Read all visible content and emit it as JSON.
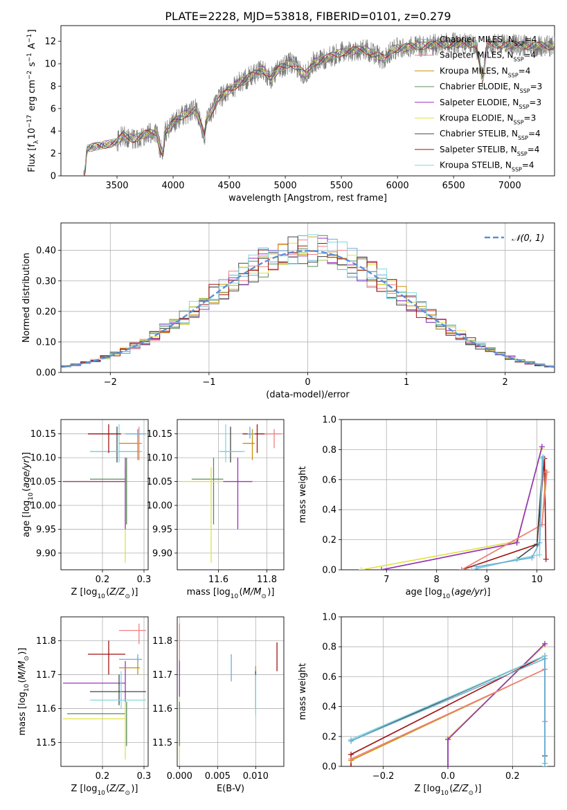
{
  "title": "PLATE=2228, MJD=53818, FIBERID=0101, z=0.279",
  "legend": [
    {
      "label": "Chabrier MILES, N",
      "sub": "SSP",
      "suffix": "=4",
      "color": "#6aaed6"
    },
    {
      "label": "Salpeter MILES, N",
      "sub": "SSP",
      "suffix": "=4",
      "color": "#f08080"
    },
    {
      "label": "Kroupa MILES, N",
      "sub": "SSP",
      "suffix": "=4",
      "color": "#c8900a"
    },
    {
      "label": "Chabrier ELODIE, N",
      "sub": "SSP",
      "suffix": "=3",
      "color": "#5a8a5a"
    },
    {
      "label": "Salpeter ELODIE, N",
      "sub": "SSP",
      "suffix": "=3",
      "color": "#9b30c0"
    },
    {
      "label": "Kroupa ELODIE, N",
      "sub": "SSP",
      "suffix": "=3",
      "color": "#e0e040"
    },
    {
      "label": "Chabrier STELIB, N",
      "sub": "SSP",
      "suffix": "=4",
      "color": "#444444"
    },
    {
      "label": "Salpeter STELIB, N",
      "sub": "SSP",
      "suffix": "=4",
      "color": "#a01010"
    },
    {
      "label": "Kroupa STELIB, N",
      "sub": "SSP",
      "suffix": "=4",
      "color": "#80d8e0"
    }
  ],
  "normal_legend": "𝒩(0, 1)",
  "chart_data": [
    {
      "type": "line",
      "title": "PLATE=2228, MJD=53818, FIBERID=0101, z=0.279",
      "xlabel": "wavelength [Angstrom, rest frame]",
      "ylabel": "Flux [f_λ 10^-17 erg cm^-2 s^-1 A^-1]",
      "xlim": [
        3000,
        7400
      ],
      "ylim": [
        0,
        13.4
      ],
      "xticks": [
        3500,
        4000,
        4500,
        5000,
        5500,
        6000,
        6500,
        7000
      ],
      "yticks": [
        0,
        2,
        4,
        6,
        8,
        10,
        12
      ],
      "spectrum_knots": [
        [
          3200,
          0
        ],
        [
          3215,
          0.3
        ],
        [
          3230,
          2.4
        ],
        [
          3300,
          2.6
        ],
        [
          3400,
          2.8
        ],
        [
          3500,
          3.0
        ],
        [
          3550,
          3.6
        ],
        [
          3650,
          3.3
        ],
        [
          3750,
          3.7
        ],
        [
          3850,
          3.9
        ],
        [
          3880,
          2.6
        ],
        [
          3910,
          2.0
        ],
        [
          3930,
          3.9
        ],
        [
          4000,
          4.7
        ],
        [
          4100,
          5.5
        ],
        [
          4200,
          5.9
        ],
        [
          4280,
          3.6
        ],
        [
          4300,
          5.0
        ],
        [
          4400,
          6.8
        ],
        [
          4500,
          7.6
        ],
        [
          4600,
          8.4
        ],
        [
          4700,
          8.9
        ],
        [
          4800,
          9.5
        ],
        [
          4870,
          8.7
        ],
        [
          4950,
          9.6
        ],
        [
          5050,
          10.1
        ],
        [
          5180,
          9.0
        ],
        [
          5250,
          10.1
        ],
        [
          5400,
          10.6
        ],
        [
          5500,
          11.0
        ],
        [
          5700,
          11.3
        ],
        [
          5890,
          10.4
        ],
        [
          5950,
          11.3
        ],
        [
          6200,
          11.6
        ],
        [
          6500,
          11.8
        ],
        [
          6700,
          11.8
        ],
        [
          6760,
          8.5
        ],
        [
          6800,
          11.8
        ],
        [
          7000,
          11.7
        ],
        [
          7200,
          11.6
        ],
        [
          7400,
          11.6
        ]
      ]
    },
    {
      "type": "line",
      "xlabel": "(data-model)/error",
      "ylabel": "Normed distribution",
      "xlim": [
        -2.5,
        2.5
      ],
      "ylim": [
        0,
        0.49
      ],
      "xticks": [
        -2,
        -1,
        0,
        1,
        2
      ],
      "yticks": [
        0.0,
        0.1,
        0.2,
        0.3,
        0.4
      ],
      "series_note": "histograms of normalized residuals for the 9 fits, overlaid with a standard normal curve",
      "normal": {
        "mu": 0,
        "sigma": 1,
        "color": "#5b8fd9"
      }
    },
    {
      "type": "scatter",
      "xlabel": "Z [log10(Z/Z⊙)]",
      "ylabel": "age  [log10(age/yr)]",
      "xlim": [
        0.1,
        0.31
      ],
      "ylim": [
        9.865,
        10.18
      ],
      "xticks": [
        0.2,
        0.3
      ],
      "yticks": [
        9.9,
        9.95,
        10.0,
        10.05,
        10.1,
        10.15
      ],
      "points": [
        {
          "x": 0.258,
          "y": 10.055,
          "xerr": [
            0.17,
            0.255
          ],
          "yerr": [
            9.96,
            10.1
          ],
          "color": "#5a8a5a"
        },
        {
          "x": 0.255,
          "y": 10.05,
          "xerr": [
            0.105,
            0.255
          ],
          "yerr": [
            9.88,
            10.08
          ],
          "color": "#e0e040"
        },
        {
          "x": 0.255,
          "y": 10.05,
          "xerr": [
            0.105,
            0.255
          ],
          "yerr": [
            9.95,
            10.1
          ],
          "color": "#9b30c0"
        },
        {
          "x": 0.235,
          "y": 10.113,
          "xerr": [
            0.17,
            0.295
          ],
          "yerr": [
            10.09,
            10.165
          ],
          "color": "#444444"
        },
        {
          "x": 0.24,
          "y": 10.113,
          "xerr": [
            0.17,
            0.295
          ],
          "yerr": [
            10.09,
            10.17
          ],
          "color": "#80d8e0"
        },
        {
          "x": 0.215,
          "y": 10.15,
          "xerr": [
            0.165,
            0.245
          ],
          "yerr": [
            10.11,
            10.17
          ],
          "color": "#a01010"
        },
        {
          "x": 0.285,
          "y": 10.13,
          "xerr": [
            0.24,
            0.29
          ],
          "yerr": [
            10.095,
            10.16
          ],
          "color": "#c8900a"
        },
        {
          "x": 0.288,
          "y": 10.13,
          "xerr": [
            0.285,
            0.295
          ],
          "yerr": [
            10.095,
            10.165
          ],
          "color": "#f08080"
        },
        {
          "x": 0.285,
          "y": 10.15,
          "xerr": [
            0.255,
            0.305
          ],
          "yerr": [
            10.14,
            10.16
          ],
          "color": "#6aaed6"
        }
      ]
    },
    {
      "type": "scatter",
      "xlabel": "mass [log10(M/M⊙)]",
      "ylabel": "",
      "xlim": [
        11.43,
        11.87
      ],
      "ylim": [
        9.865,
        10.18
      ],
      "xticks": [
        11.6,
        11.8
      ],
      "yticks": [
        9.9,
        9.95,
        10.0,
        10.05,
        10.1,
        10.15
      ],
      "points": [
        {
          "x": 11.58,
          "y": 10.055,
          "xerr": [
            11.49,
            11.62
          ],
          "yerr": [
            9.96,
            10.1
          ],
          "color": "#5a8a5a"
        },
        {
          "x": 11.57,
          "y": 10.05,
          "xerr": [
            11.45,
            11.62
          ],
          "yerr": [
            9.88,
            10.08
          ],
          "color": "#e0e040"
        },
        {
          "x": 11.68,
          "y": 10.05,
          "xerr": [
            11.62,
            11.74
          ],
          "yerr": [
            9.95,
            10.1
          ],
          "color": "#9b30c0"
        },
        {
          "x": 11.65,
          "y": 10.113,
          "xerr": [
            11.61,
            11.7
          ],
          "yerr": [
            10.09,
            10.165
          ],
          "color": "#444444"
        },
        {
          "x": 11.63,
          "y": 10.113,
          "xerr": [
            11.6,
            11.71
          ],
          "yerr": [
            10.09,
            10.17
          ],
          "color": "#80d8e0"
        },
        {
          "x": 11.76,
          "y": 10.15,
          "xerr": [
            11.7,
            11.8
          ],
          "yerr": [
            10.11,
            10.17
          ],
          "color": "#a01010"
        },
        {
          "x": 11.74,
          "y": 10.13,
          "xerr": [
            11.7,
            11.75
          ],
          "yerr": [
            10.095,
            10.16
          ],
          "color": "#c8900a"
        },
        {
          "x": 11.83,
          "y": 10.15,
          "xerr": [
            11.79,
            11.86
          ],
          "yerr": [
            10.12,
            10.16
          ],
          "color": "#f08080"
        },
        {
          "x": 11.73,
          "y": 10.15,
          "xerr": [
            11.72,
            11.75
          ],
          "yerr": [
            10.14,
            10.165
          ],
          "color": "#6aaed6"
        }
      ]
    },
    {
      "type": "line",
      "xlabel": "age  [log10(age/yr)]",
      "ylabel": "mass weight",
      "xlim": [
        6.1,
        10.35
      ],
      "ylim": [
        0,
        1.0
      ],
      "xticks": [
        7,
        8,
        9,
        10
      ],
      "yticks": [
        0.0,
        0.2,
        0.4,
        0.6,
        0.8,
        1.0
      ],
      "series": [
        {
          "color": "#e0e040",
          "points": [
            [
              6.5,
              0.0
            ],
            [
              9.6,
              0.19
            ],
            [
              10.1,
              0.81
            ]
          ]
        },
        {
          "color": "#5a8a5a",
          "points": [
            [
              6.9,
              0.0
            ],
            [
              9.6,
              0.18
            ],
            [
              10.1,
              0.82
            ]
          ]
        },
        {
          "color": "#9b30c0",
          "points": [
            [
              6.9,
              0.0
            ],
            [
              9.6,
              0.18
            ],
            [
              10.1,
              0.82
            ]
          ]
        },
        {
          "color": "#a01010",
          "points": [
            [
              8.5,
              0.0
            ],
            [
              10.0,
              0.17
            ],
            [
              10.15,
              0.74
            ],
            [
              10.18,
              0.07
            ]
          ]
        },
        {
          "color": "#c8900a",
          "points": [
            [
              8.5,
              0.0
            ],
            [
              10.1,
              0.3
            ],
            [
              10.18,
              0.65
            ]
          ]
        },
        {
          "color": "#f08080",
          "points": [
            [
              8.5,
              0.0
            ],
            [
              10.1,
              0.3
            ],
            [
              10.2,
              0.65
            ]
          ]
        },
        {
          "color": "#444444",
          "points": [
            [
              8.7,
              0.0
            ],
            [
              9.6,
              0.07
            ],
            [
              10.0,
              0.17
            ],
            [
              10.12,
              0.74
            ]
          ]
        },
        {
          "color": "#80d8e0",
          "points": [
            [
              8.7,
              0.0
            ],
            [
              9.6,
              0.07
            ],
            [
              10.05,
              0.1
            ],
            [
              10.1,
              0.74
            ]
          ]
        },
        {
          "color": "#6aaed6",
          "points": [
            [
              8.8,
              0.02
            ],
            [
              9.9,
              0.08
            ],
            [
              10.05,
              0.18
            ],
            [
              10.12,
              0.75
            ]
          ]
        }
      ]
    },
    {
      "type": "scatter",
      "xlabel": "Z [log10(Z/Z⊙)]",
      "ylabel": "mass [log10(M/M⊙)]",
      "xlim": [
        0.1,
        0.31
      ],
      "ylim": [
        11.43,
        11.87
      ],
      "xticks": [
        0.2,
        0.3
      ],
      "yticks": [
        11.5,
        11.6,
        11.7,
        11.8
      ],
      "points": [
        {
          "x": 0.258,
          "y": 11.585,
          "xerr": [
            0.115,
            0.255
          ],
          "yerr": [
            11.49,
            11.62
          ],
          "color": "#5a8a5a"
        },
        {
          "x": 0.255,
          "y": 11.57,
          "xerr": [
            0.105,
            0.255
          ],
          "yerr": [
            11.45,
            11.62
          ],
          "color": "#e0e040"
        },
        {
          "x": 0.255,
          "y": 11.675,
          "xerr": [
            0.105,
            0.255
          ],
          "yerr": [
            11.62,
            11.74
          ],
          "color": "#9b30c0"
        },
        {
          "x": 0.24,
          "y": 11.65,
          "xerr": [
            0.17,
            0.305
          ],
          "yerr": [
            11.61,
            11.7
          ],
          "color": "#444444"
        },
        {
          "x": 0.245,
          "y": 11.625,
          "xerr": [
            0.17,
            0.305
          ],
          "yerr": [
            11.6,
            11.71
          ],
          "color": "#80d8e0"
        },
        {
          "x": 0.215,
          "y": 11.76,
          "xerr": [
            0.165,
            0.255
          ],
          "yerr": [
            11.7,
            11.8
          ],
          "color": "#a01010"
        },
        {
          "x": 0.285,
          "y": 11.72,
          "xerr": [
            0.24,
            0.29
          ],
          "yerr": [
            11.7,
            11.75
          ],
          "color": "#c8900a"
        },
        {
          "x": 0.288,
          "y": 11.83,
          "xerr": [
            0.24,
            0.305
          ],
          "yerr": [
            11.79,
            11.85
          ],
          "color": "#f08080"
        },
        {
          "x": 0.285,
          "y": 11.745,
          "xerr": [
            0.24,
            0.295
          ],
          "yerr": [
            11.73,
            11.76
          ],
          "color": "#6aaed6"
        }
      ]
    },
    {
      "type": "scatter",
      "xlabel": "E(B-V)",
      "ylabel": "",
      "xlim": [
        -0.0003,
        0.0137
      ],
      "ylim": [
        11.43,
        11.87
      ],
      "xticks": [
        0.0,
        0.005,
        0.01
      ],
      "yticks": [
        11.5,
        11.6,
        11.7,
        11.8
      ],
      "points": [
        {
          "x": 0.0,
          "y": 11.57,
          "yerr": [
            11.45,
            11.63
          ],
          "color": "#e0e040"
        },
        {
          "x": 0.0,
          "y": 11.585,
          "yerr": [
            11.49,
            11.62
          ],
          "color": "#5a8a5a"
        },
        {
          "x": 0.0,
          "y": 11.69,
          "yerr": [
            11.635,
            11.745
          ],
          "color": "#9b30c0"
        },
        {
          "x": 0.0,
          "y": 11.79,
          "yerr": [
            11.74,
            11.85
          ],
          "color": "#f08080"
        },
        {
          "x": 0.0068,
          "y": 11.72,
          "yerr": [
            11.68,
            11.76
          ],
          "color": "#6aaed6"
        },
        {
          "x": 0.01,
          "y": 11.7,
          "yerr": [
            11.68,
            11.725
          ],
          "color": "#c8900a"
        },
        {
          "x": 0.01,
          "y": 11.66,
          "yerr": [
            11.6,
            11.71
          ],
          "color": "#444444"
        },
        {
          "x": 0.01,
          "y": 11.64,
          "yerr": [
            11.58,
            11.7
          ],
          "color": "#80d8e0"
        },
        {
          "x": 0.0128,
          "y": 11.75,
          "yerr": [
            11.71,
            11.795
          ],
          "color": "#a01010"
        }
      ]
    },
    {
      "type": "line",
      "xlabel": "Z [log10(Z/Z⊙)]",
      "ylabel": "mass weight",
      "xlim": [
        -0.33,
        0.33
      ],
      "ylim": [
        0,
        1.0
      ],
      "xticks": [
        -0.2,
        0.0,
        0.2
      ],
      "yticks": [
        0.0,
        0.2,
        0.4,
        0.6,
        0.8,
        1.0
      ],
      "series": [
        {
          "color": "#e0e040",
          "points": [
            [
              0.0,
              0.0
            ],
            [
              0.0,
              0.19
            ],
            [
              0.3,
              0.81
            ]
          ]
        },
        {
          "color": "#5a8a5a",
          "points": [
            [
              0.0,
              0.0
            ],
            [
              0.0,
              0.18
            ],
            [
              0.3,
              0.82
            ]
          ]
        },
        {
          "color": "#9b30c0",
          "points": [
            [
              0.0,
              0.0
            ],
            [
              0.0,
              0.18
            ],
            [
              0.3,
              0.82
            ]
          ]
        },
        {
          "color": "#a01010",
          "points": [
            [
              -0.3,
              0.0
            ],
            [
              -0.3,
              0.08
            ],
            [
              0.3,
              0.74
            ]
          ]
        },
        {
          "color": "#c8900a",
          "points": [
            [
              -0.3,
              0.04
            ],
            [
              0.3,
              0.65
            ],
            [
              0.3,
              0.3
            ]
          ]
        },
        {
          "color": "#f08080",
          "points": [
            [
              -0.3,
              0.05
            ],
            [
              0.3,
              0.65
            ],
            [
              0.3,
              0.3
            ]
          ]
        },
        {
          "color": "#444444",
          "points": [
            [
              -0.3,
              0.17
            ],
            [
              0.3,
              0.74
            ],
            [
              0.3,
              0.07
            ]
          ]
        },
        {
          "color": "#80d8e0",
          "points": [
            [
              -0.3,
              0.18
            ],
            [
              0.3,
              0.74
            ],
            [
              0.3,
              0.0
            ]
          ]
        },
        {
          "color": "#6aaed6",
          "points": [
            [
              -0.3,
              0.17
            ],
            [
              0.3,
              0.72
            ],
            [
              0.3,
              0.02
            ]
          ]
        }
      ]
    }
  ]
}
